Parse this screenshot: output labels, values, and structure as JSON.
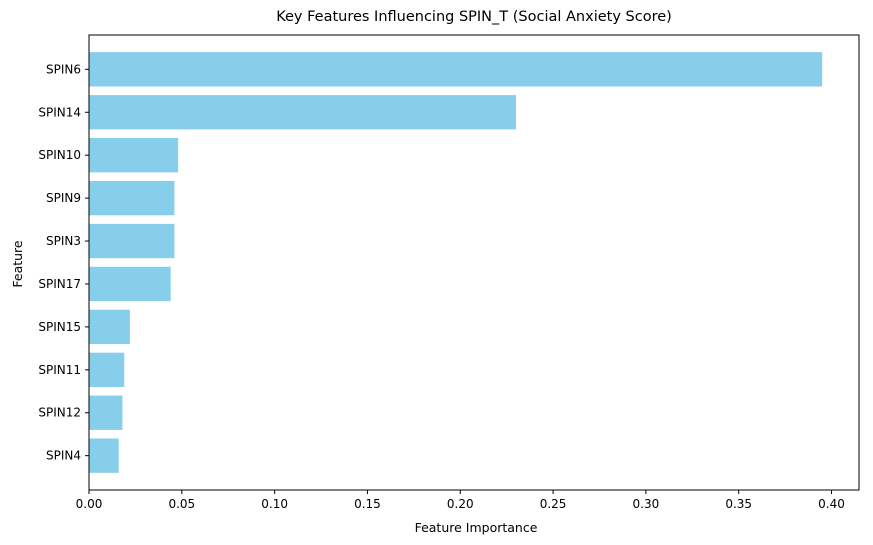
{
  "chart_data": {
    "type": "bar",
    "orientation": "horizontal",
    "title": "Key Features Influencing SPIN_T (Social Anxiety Score)",
    "xlabel": "Feature Importance",
    "ylabel": "Feature",
    "categories": [
      "SPIN6",
      "SPIN14",
      "SPIN10",
      "SPIN9",
      "SPIN3",
      "SPIN17",
      "SPIN15",
      "SPIN11",
      "SPIN12",
      "SPIN4"
    ],
    "values": [
      0.395,
      0.23,
      0.048,
      0.046,
      0.046,
      0.044,
      0.022,
      0.019,
      0.018,
      0.016
    ],
    "xlim": [
      0,
      0.4148
    ],
    "xticks": [
      "0.00",
      "0.05",
      "0.10",
      "0.15",
      "0.20",
      "0.25",
      "0.30",
      "0.35",
      "0.40"
    ],
    "bar_color": "#87ceeb",
    "grid": false,
    "legend": null
  }
}
